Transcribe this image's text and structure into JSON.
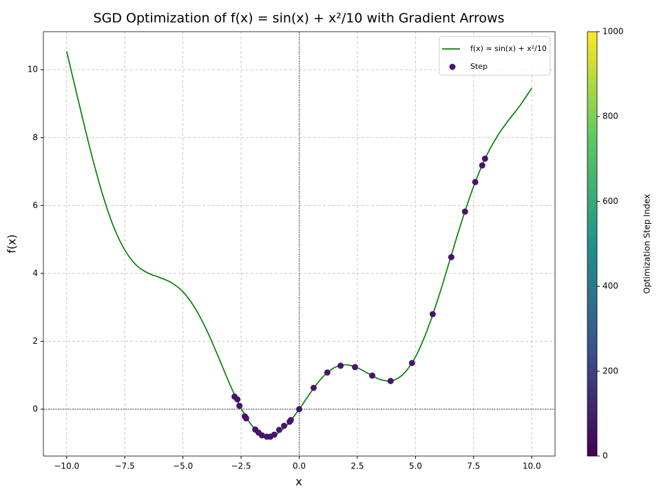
{
  "chart_data": {
    "type": "line",
    "title": "SGD Optimization of f(x) = sin(x) + x²/10 with Gradient Arrows",
    "x_label": "x",
    "y_label": "f(x)",
    "xlim": [
      -11,
      11
    ],
    "ylim": [
      -1.38,
      11.12
    ],
    "xticks": [
      {
        "value": -10,
        "label": "−10.0"
      },
      {
        "value": -7.5,
        "label": "−7.5"
      },
      {
        "value": -5,
        "label": "−5.0"
      },
      {
        "value": -2.5,
        "label": "−2.5"
      },
      {
        "value": 0,
        "label": "0.0"
      },
      2.5,
      {
        "value": 5,
        "label": "5.0"
      },
      7.5,
      {
        "value": 10,
        "label": "10.0"
      }
    ],
    "yticks": [
      0,
      2,
      4,
      6,
      8,
      10
    ],
    "grid": true,
    "zero_lines": true,
    "legend": "upper right",
    "series": [
      {
        "name": "f(x) = sin(x) + x²/10",
        "type": "line",
        "color": "#008000",
        "x": [
          -10,
          -9.5,
          -9,
          -8.5,
          -8,
          -7.5,
          -7,
          -6.5,
          -6,
          -5.5,
          -5,
          -4.5,
          -4,
          -3.5,
          -3,
          -2.5,
          -2,
          -1.5,
          -1,
          -0.5,
          0,
          0.5,
          1,
          1.5,
          2,
          2.5,
          3,
          3.5,
          4,
          4.5,
          5,
          5.5,
          6,
          6.5,
          7,
          7.5,
          8,
          8.5,
          9,
          9.5,
          10
        ],
        "values": [
          10.54,
          9.1,
          7.69,
          6.43,
          5.41,
          4.69,
          4.24,
          4.01,
          3.88,
          3.73,
          3.46,
          3.0,
          2.36,
          1.58,
          0.76,
          0.03,
          -0.51,
          -0.77,
          -0.74,
          -0.45,
          0,
          0.5,
          0.94,
          1.22,
          1.31,
          1.22,
          1.04,
          0.87,
          0.84,
          1.05,
          1.54,
          2.32,
          3.32,
          4.44,
          5.56,
          6.56,
          7.39,
          8.02,
          8.51,
          8.95,
          9.46
        ]
      },
      {
        "name": "Step",
        "type": "scatter",
        "color": "#46156a",
        "x": [
          0,
          0.62,
          1.21,
          1.78,
          2.4,
          3.14,
          3.93,
          4.85,
          5.74,
          6.54,
          7.13,
          7.57,
          7.87,
          7.99,
          -2.78,
          -2.66,
          -2.57,
          -2.34,
          -2.28,
          -1.89,
          -1.75,
          -1.6,
          -1.39,
          -1.24,
          -1.07,
          -0.86,
          -0.65,
          -0.41,
          -0.36
        ],
        "values": [
          0,
          0.63,
          1.08,
          1.28,
          1.24,
          0.99,
          0.83,
          1.36,
          2.8,
          4.48,
          5.82,
          6.69,
          7.18,
          7.38,
          0.37,
          0.29,
          0.1,
          -0.21,
          -0.27,
          -0.6,
          -0.69,
          -0.77,
          -0.81,
          -0.81,
          -0.75,
          -0.61,
          -0.49,
          -0.37,
          -0.32
        ]
      }
    ],
    "colorbar": {
      "label": "Optimization Step Index",
      "lim": [
        0,
        1000
      ],
      "ticks": [
        0,
        200,
        400,
        600,
        800,
        1000
      ],
      "colors": [
        "#440154",
        "#3b528b",
        "#21918c",
        "#5ec962",
        "#fde725"
      ]
    }
  }
}
